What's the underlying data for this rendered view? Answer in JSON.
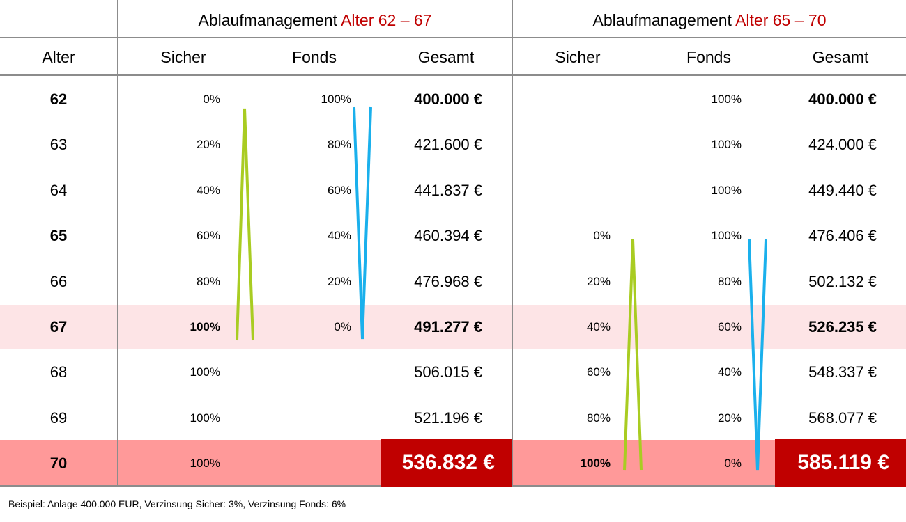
{
  "header": {
    "group1": {
      "label": "Ablaufmanagement",
      "range": "Alter 62 – 67"
    },
    "group2": {
      "label": "Ablaufmanagement",
      "range": "Alter 65 – 70"
    },
    "col_age": "Alter",
    "g1_sicher": "Sicher",
    "g1_fonds": "Fonds",
    "g1_gesamt": "Gesamt",
    "g2_sicher": "Sicher",
    "g2_fonds": "Fonds",
    "g2_gesamt": "Gesamt"
  },
  "rows": [
    {
      "age": "62",
      "g1_sicher": "0%",
      "g1_fonds": "100%",
      "g1_gesamt": "400.000 €",
      "g2_sicher": "",
      "g2_fonds": "100%",
      "g2_gesamt": "400.000 €"
    },
    {
      "age": "63",
      "g1_sicher": "20%",
      "g1_fonds": "80%",
      "g1_gesamt": "421.600 €",
      "g2_sicher": "",
      "g2_fonds": "100%",
      "g2_gesamt": "424.000 €"
    },
    {
      "age": "64",
      "g1_sicher": "40%",
      "g1_fonds": "60%",
      "g1_gesamt": "441.837 €",
      "g2_sicher": "",
      "g2_fonds": "100%",
      "g2_gesamt": "449.440 €"
    },
    {
      "age": "65",
      "g1_sicher": "60%",
      "g1_fonds": "40%",
      "g1_gesamt": "460.394 €",
      "g2_sicher": "0%",
      "g2_fonds": "100%",
      "g2_gesamt": "476.406 €"
    },
    {
      "age": "66",
      "g1_sicher": "80%",
      "g1_fonds": "20%",
      "g1_gesamt": "476.968 €",
      "g2_sicher": "20%",
      "g2_fonds": "80%",
      "g2_gesamt": "502.132 €"
    },
    {
      "age": "67",
      "g1_sicher": "100%",
      "g1_fonds": "0%",
      "g1_gesamt": "491.277 €",
      "g2_sicher": "40%",
      "g2_fonds": "60%",
      "g2_gesamt": "526.235 €"
    },
    {
      "age": "68",
      "g1_sicher": "100%",
      "g1_fonds": "",
      "g1_gesamt": "506.015 €",
      "g2_sicher": "60%",
      "g2_fonds": "40%",
      "g2_gesamt": "548.337 €"
    },
    {
      "age": "69",
      "g1_sicher": "100%",
      "g1_fonds": "",
      "g1_gesamt": "521.196 €",
      "g2_sicher": "80%",
      "g2_fonds": "20%",
      "g2_gesamt": "568.077 €"
    },
    {
      "age": "70",
      "g1_sicher": "100%",
      "g1_fonds": "",
      "g1_gesamt": "536.832 €",
      "g2_sicher": "100%",
      "g2_fonds": "0%",
      "g2_gesamt": "585.119 €"
    }
  ],
  "colors": {
    "red_text": "#c00000",
    "highlight_light": "#fde4e6",
    "highlight_row": "#ff9999",
    "green_line": "#a9cc22",
    "blue_line": "#1ab0ec",
    "grid": "#8c8c8c"
  },
  "footnote": "Beispiel: Anlage 400.000 EUR, Verzinsung Sicher: 3%, Verzinsung Fonds: 6%"
}
